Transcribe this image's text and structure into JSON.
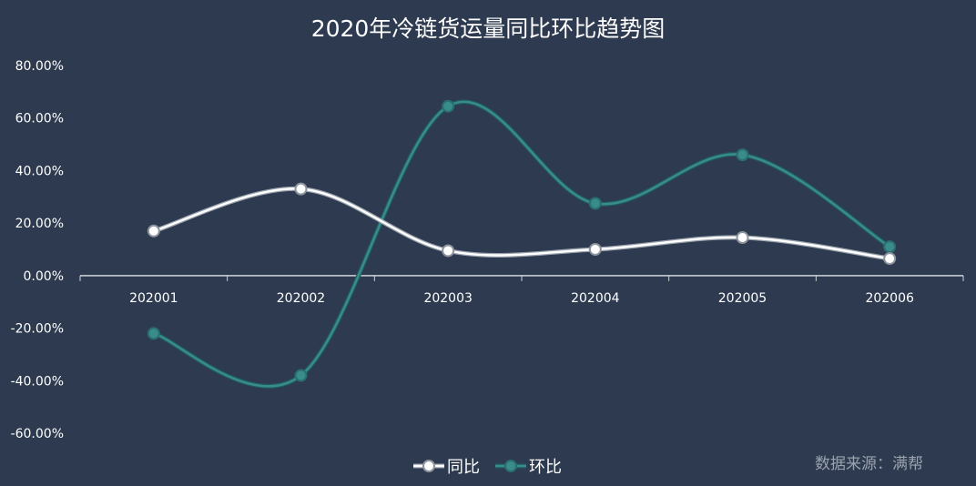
{
  "chart_data": {
    "type": "line",
    "title": "2020年冷链货运量同比环比趋势图",
    "categories": [
      "202001",
      "202002",
      "202003",
      "202004",
      "202005",
      "202006"
    ],
    "ylim": [
      -0.6,
      0.8
    ],
    "yticks": [
      "80.00%",
      "60.00%",
      "40.00%",
      "20.00%",
      "0.00%",
      "-20.00%",
      "-40.00%",
      "-60.00%"
    ],
    "series": [
      {
        "name": "同比",
        "values": [
          0.17,
          0.33,
          0.095,
          0.1,
          0.145,
          0.065
        ],
        "color": "#ffffff"
      },
      {
        "name": "环比",
        "values": [
          -0.22,
          -0.38,
          0.645,
          0.275,
          0.46,
          0.11
        ],
        "color": "#3a8c8c"
      }
    ],
    "smooth": true,
    "grid": false,
    "legend": "bottom-center"
  },
  "source_text": "数据来源：满帮"
}
